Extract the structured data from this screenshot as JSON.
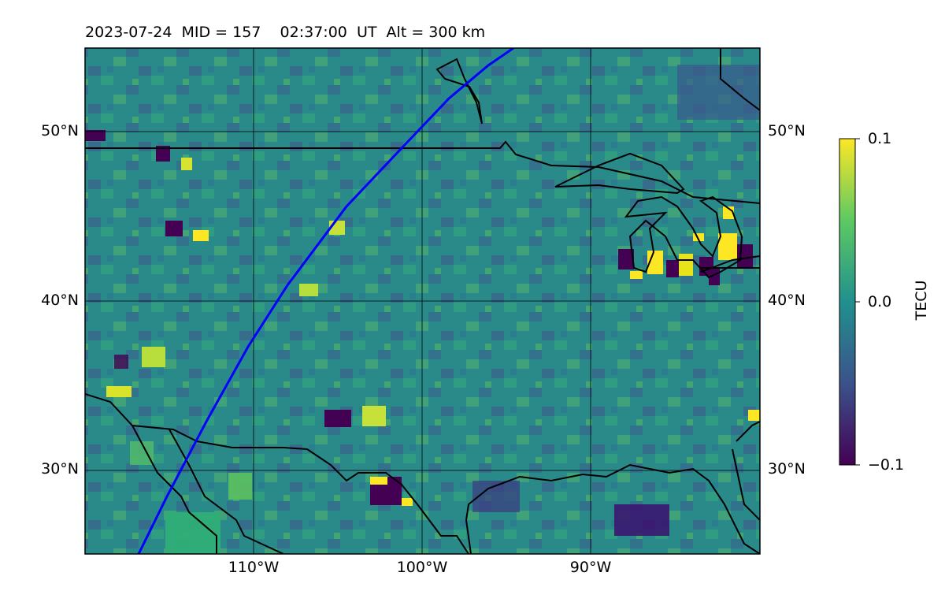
{
  "title": "2023-07-24  MID = 157    02:37:00  UT  Alt = 300 km",
  "map": {
    "lat_labels_left": [
      "50°N",
      "40°N",
      "30°N"
    ],
    "lat_labels_right": [
      "50°N",
      "40°N",
      "30°N"
    ],
    "lon_labels": [
      "110°W",
      "100°W",
      "90°W"
    ],
    "track_color": "#0000ff",
    "coast_color": "#000000"
  },
  "colorbar": {
    "title": "TECU",
    "max_label": "0.1",
    "mid_label": "0.0",
    "min_label": "−0.1",
    "colors": [
      "#440154",
      "#3b528b",
      "#21908d",
      "#5dc963",
      "#fde725"
    ]
  }
}
